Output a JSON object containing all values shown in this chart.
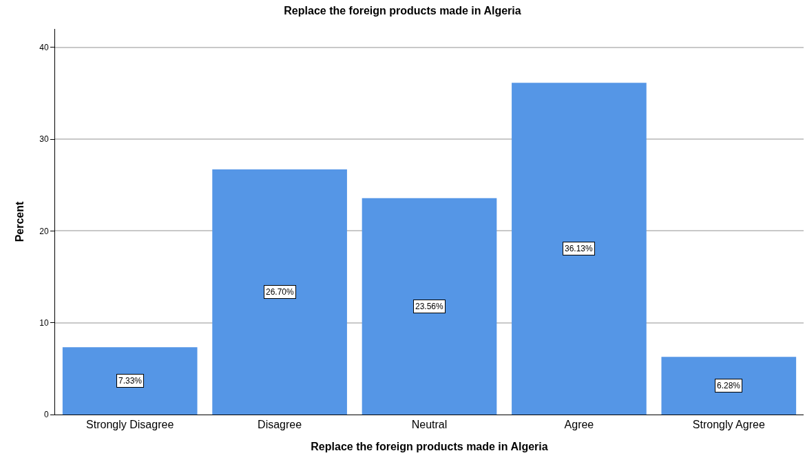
{
  "chart_data": {
    "type": "bar",
    "title": "Replace the foreign products made in Algeria",
    "xlabel": "Replace the foreign products made in Algeria",
    "ylabel": "Percent",
    "categories": [
      "Strongly Disagree",
      "Disagree",
      "Neutral",
      "Agree",
      "Strongly Agree"
    ],
    "values": [
      7.33,
      26.7,
      23.56,
      36.13,
      6.28
    ],
    "value_labels": [
      "7.33%",
      "26.70%",
      "23.56%",
      "36.13%",
      "6.28%"
    ],
    "color": "#5596e6",
    "ylim": [
      0,
      42
    ],
    "yticks": [
      0,
      10,
      20,
      30,
      40
    ],
    "grid": "y"
  }
}
